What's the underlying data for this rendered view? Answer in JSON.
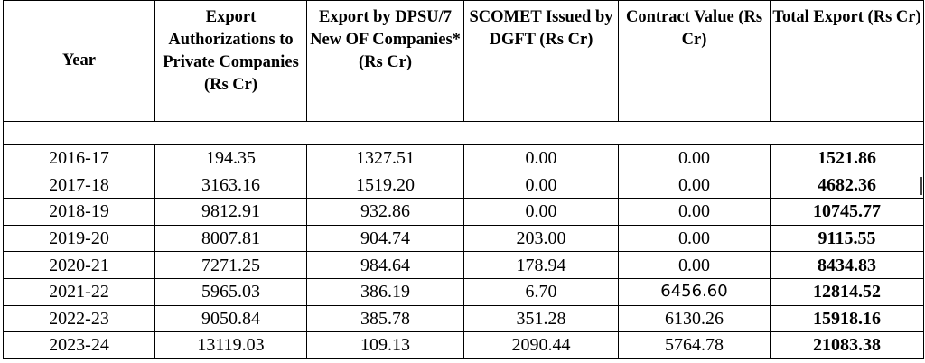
{
  "headers": {
    "year": "Year",
    "private": "Export Authorizations to Private Companies (Rs Cr)",
    "dpsu": "Export by DPSU/7 New OF Companies*(Rs Cr)",
    "scomet": "SCOMET Issued by DGFT (Rs Cr)",
    "contract": "Contract Value (Rs Cr)",
    "total": "Total Export (Rs Cr)"
  },
  "rows": [
    {
      "year": "2016-17",
      "private": "194.35",
      "dpsu": "1327.51",
      "scomet": "0.00",
      "contract": "0.00",
      "total": "1521.86"
    },
    {
      "year": "2017-18",
      "private": "3163.16",
      "dpsu": "1519.20",
      "scomet": "0.00",
      "contract": "0.00",
      "total": "4682.36"
    },
    {
      "year": "2018-19",
      "private": "9812.91",
      "dpsu": "932.86",
      "scomet": "0.00",
      "contract": "0.00",
      "total": "10745.77"
    },
    {
      "year": "2019-20",
      "private": "8007.81",
      "dpsu": "904.74",
      "scomet": "203.00",
      "contract": "0.00",
      "total": "9115.55"
    },
    {
      "year": "2020-21",
      "private": "7271.25",
      "dpsu": "984.64",
      "scomet": "178.94",
      "contract": "0.00",
      "total": "8434.83"
    },
    {
      "year": "2021-22",
      "private": "5965.03",
      "dpsu": "386.19",
      "scomet": "6.70",
      "contract": "6456.60",
      "total": "12814.52"
    },
    {
      "year": "2022-23",
      "private": "9050.84",
      "dpsu": "385.78",
      "scomet": "351.28",
      "contract": "6130.26",
      "total": "15918.16"
    },
    {
      "year": "2023-24",
      "private": "13119.03",
      "dpsu": "109.13",
      "scomet": "2090.44",
      "contract": "5764.78",
      "total": "21083.38"
    }
  ]
}
